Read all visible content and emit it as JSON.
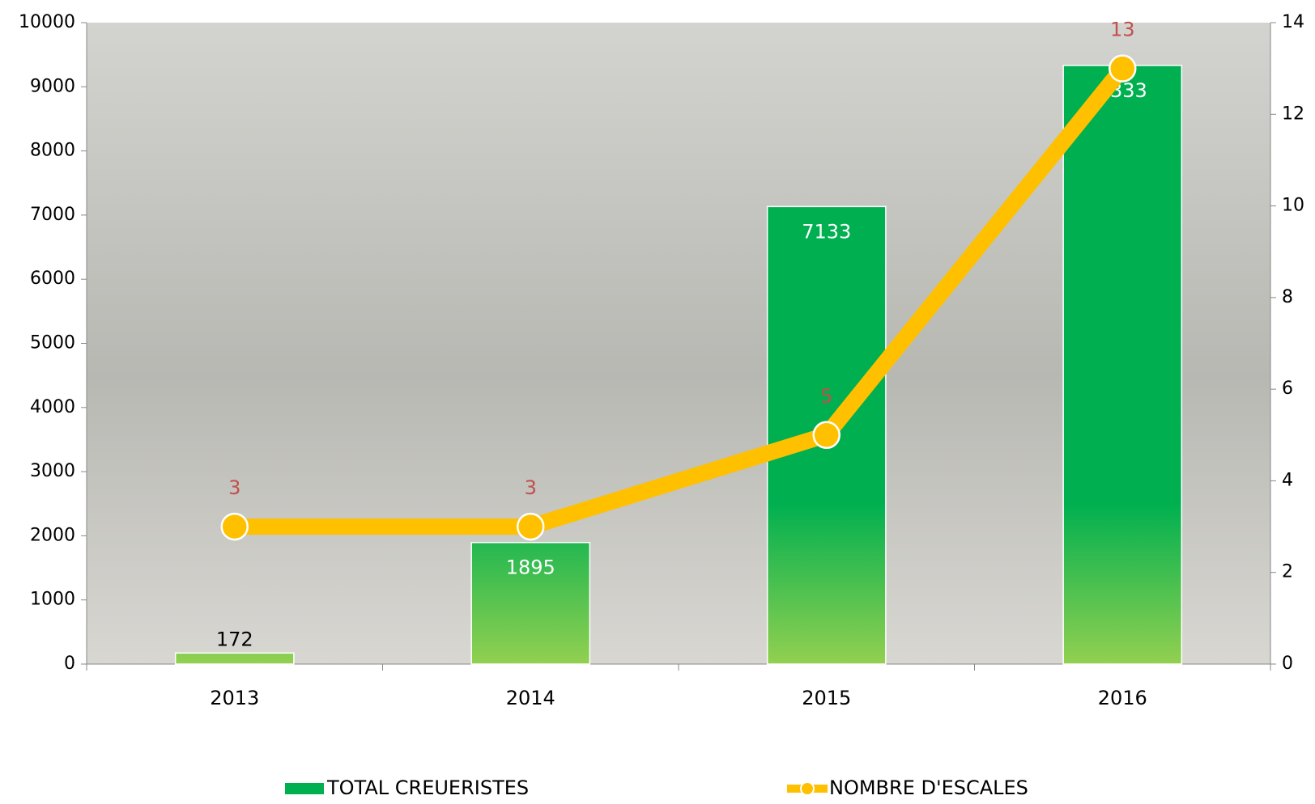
{
  "chart_data": {
    "type": "bar-line",
    "categories": [
      "2013",
      "2014",
      "2015",
      "2016"
    ],
    "series": [
      {
        "name": "TOTAL CREUERISTES",
        "type": "bar",
        "color": "#00b050",
        "values": [
          172,
          1895,
          7133,
          9333
        ]
      },
      {
        "name": "NOMBRE D'ESCALES",
        "type": "line",
        "axis": "y2",
        "color": "#ffc000",
        "label_color": "#c0504d",
        "values": [
          3,
          3,
          5,
          13
        ]
      }
    ],
    "ylim": [
      0,
      10000
    ],
    "yticks": [
      0,
      1000,
      2000,
      3000,
      4000,
      5000,
      6000,
      7000,
      8000,
      9000,
      10000
    ],
    "y2lim": [
      0,
      14
    ],
    "y2ticks": [
      0,
      2,
      4,
      6,
      8,
      10,
      12,
      14
    ],
    "legend": "bottom"
  }
}
